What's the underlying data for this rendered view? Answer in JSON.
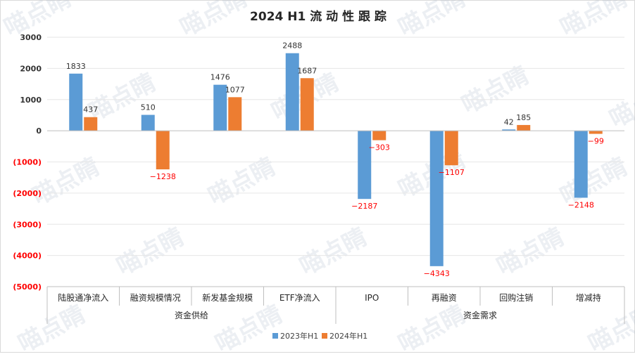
{
  "chart_data": {
    "type": "bar",
    "title": "2024 H1 流 动 性 跟 踪",
    "categories": [
      "陆股通净流入",
      "融资规模情况",
      "新发基金规模",
      "ETF净流入",
      "IPO",
      "再融资",
      "回购注销",
      "增减持"
    ],
    "groups": [
      {
        "label": "资金供给",
        "categories": [
          "陆股通净流入",
          "融资规模情况",
          "新发基金规模",
          "ETF净流入"
        ]
      },
      {
        "label": "资金需求",
        "categories": [
          "IPO",
          "再融资",
          "回购注销",
          "增减持"
        ]
      }
    ],
    "series": [
      {
        "name": "2023年H1",
        "color": "#5B9BD5",
        "values": [
          1833,
          510,
          1476,
          2488,
          -2187,
          -4343,
          42,
          -2148
        ],
        "labels": [
          "1833",
          "510",
          "1476",
          "2488",
          "−2187",
          "−4343",
          "42",
          "−2148"
        ]
      },
      {
        "name": "2024年H1",
        "color": "#ED7D31",
        "values": [
          437,
          -1238,
          1077,
          1687,
          -303,
          -1107,
          185,
          -99
        ],
        "labels": [
          "437",
          "−1238",
          "1077",
          "1687",
          "−303",
          "−1107",
          "185",
          "−99"
        ]
      }
    ],
    "ylim": [
      -5000,
      3000
    ],
    "yticks": [
      3000,
      2000,
      1000,
      0,
      -1000,
      -2000,
      -3000,
      -4000,
      -5000
    ],
    "ytick_labels": [
      "3000",
      "2000",
      "1000",
      "0",
      "(1000)",
      "(2000)",
      "(3000)",
      "(4000)",
      "(5000)"
    ],
    "negative_label_color": "#FF0000",
    "grid": true,
    "legend_position": "bottom"
  },
  "watermark": "喵点睛"
}
